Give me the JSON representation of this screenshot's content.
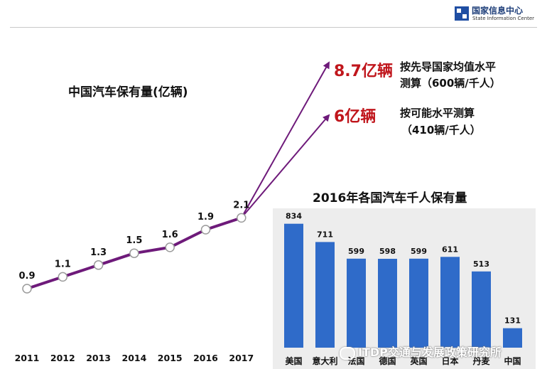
{
  "logo": {
    "name_cn": "国家信息中心",
    "name_en": "State Information Center"
  },
  "chart_data": [
    {
      "type": "line",
      "title": "中国汽车保有量(亿辆)",
      "x": [
        "2011",
        "2012",
        "2013",
        "2014",
        "2015",
        "2016",
        "2017"
      ],
      "values": [
        0.9,
        1.1,
        1.3,
        1.5,
        1.6,
        1.9,
        2.1
      ],
      "line_color": "#6e1a7a",
      "projections": [
        {
          "value_label": "8.7亿辆",
          "note_line1": "按先导国家均值水平",
          "note_line2": "测算（600辆/千人）"
        },
        {
          "value_label": "6亿辆",
          "note_line1": "按可能水平测算",
          "note_line2": "（410辆/千人）"
        }
      ]
    },
    {
      "type": "bar",
      "title": "2016年各国汽车千人保有量",
      "categories": [
        "美国",
        "意大利",
        "法国",
        "德国",
        "英国",
        "日本",
        "丹麦",
        "中国"
      ],
      "values": [
        834,
        711,
        599,
        598,
        599,
        611,
        513,
        131
      ],
      "bar_color": "#2f6bc9"
    }
  ],
  "watermark": "ITDP交通与发展政策研究所"
}
